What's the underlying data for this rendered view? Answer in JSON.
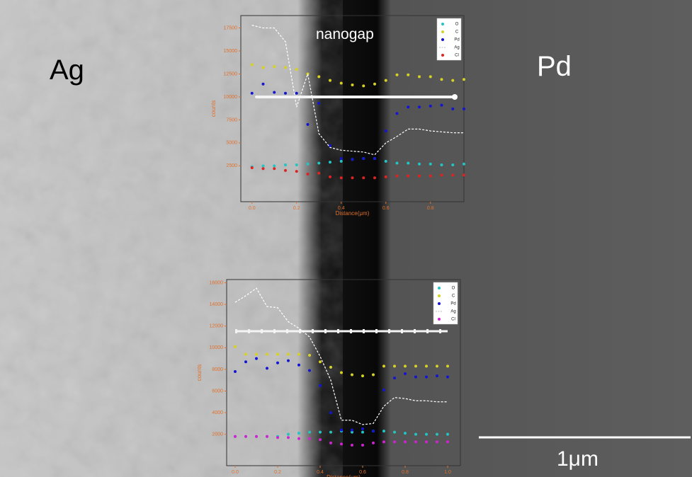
{
  "annotations": {
    "left_label": "Ag",
    "right_label": "Pd",
    "gap_label": "nanogap",
    "scale_label": "1μm"
  },
  "chart_data": [
    {
      "type": "scatter",
      "xlabel": "Distance(μm)",
      "ylabel": "counts",
      "legend": "upper right",
      "grid": false,
      "xlim": [
        -0.05,
        0.95
      ],
      "ylim": [
        -1400,
        18850
      ],
      "xticks": [
        {
          "value": 0,
          "label": "0.0"
        },
        0.2,
        0.4,
        0.6,
        0.8
      ],
      "yticks": [
        2500,
        5000,
        7500,
        10000,
        12500,
        15000,
        17500
      ],
      "x": [
        0,
        0.05,
        0.1,
        0.15,
        0.2,
        0.25,
        0.3,
        0.35,
        0.4,
        0.45,
        0.5,
        0.55,
        0.6,
        0.65,
        0.7,
        0.75,
        0.8,
        0.85,
        0.9,
        0.95
      ],
      "series": [
        {
          "name": "O",
          "color": "#22c4c4",
          "values": [
            2400,
            2500,
            2500,
            2600,
            2600,
            2700,
            2800,
            2900,
            3000,
            3200,
            3300,
            3300,
            3000,
            2800,
            2800,
            2700,
            2700,
            2600,
            2600,
            2700
          ]
        },
        {
          "name": "C",
          "color": "#d6d222",
          "values": [
            13500,
            13200,
            13300,
            13200,
            13000,
            12500,
            12200,
            11800,
            11500,
            11300,
            11200,
            11400,
            11800,
            12400,
            12400,
            12200,
            12200,
            11900,
            11800,
            11900
          ]
        },
        {
          "name": "Pd",
          "color": "#1414d4",
          "values": [
            10400,
            11400,
            10500,
            10400,
            10400,
            7000,
            9300,
            4700,
            3300,
            3200,
            3300,
            3300,
            6300,
            8200,
            8900,
            8900,
            9000,
            9100,
            8700,
            8700
          ]
        },
        {
          "name": "Ag",
          "color": "#ffffff",
          "type": "line",
          "values": [
            17800,
            17500,
            17500,
            16000,
            8900,
            12500,
            6000,
            4500,
            4200,
            4100,
            4000,
            3700,
            5000,
            5700,
            6500,
            6500,
            6300,
            6200,
            6100,
            6100
          ]
        },
        {
          "name": "Cl",
          "color": "#e02222",
          "values": [
            2300,
            2200,
            2200,
            2000,
            1900,
            1600,
            1700,
            1300,
            1200,
            1200,
            1200,
            1200,
            1300,
            1400,
            1400,
            1400,
            1400,
            1500,
            1500,
            1500
          ]
        }
      ]
    },
    {
      "type": "scatter",
      "xlabel": "Distance(μm)",
      "ylabel": "counts",
      "legend": "upper right",
      "grid": false,
      "xlim": [
        -0.04,
        1.06
      ],
      "ylim": [
        -900,
        16300
      ],
      "xticks": [
        {
          "value": 0,
          "label": "0.0"
        },
        0.2,
        0.4,
        0.6,
        0.8,
        {
          "value": 1,
          "label": "1.0"
        }
      ],
      "yticks": [
        2000,
        4000,
        6000,
        8000,
        10000,
        12000,
        14000,
        16000
      ],
      "x": [
        0,
        0.05,
        0.1,
        0.15,
        0.2,
        0.25,
        0.3,
        0.35,
        0.4,
        0.45,
        0.5,
        0.55,
        0.6,
        0.65,
        0.7,
        0.75,
        0.8,
        0.85,
        0.9,
        0.95,
        1
      ],
      "series": [
        {
          "name": "O",
          "color": "#22c4c4",
          "values": [
            1800,
            1800,
            1800,
            1800,
            1800,
            2000,
            2100,
            2200,
            2200,
            2200,
            2300,
            2200,
            2200,
            2300,
            2300,
            2200,
            2100,
            2000,
            2000,
            2000,
            2000
          ]
        },
        {
          "name": "C",
          "color": "#d6d222",
          "values": [
            10100,
            9400,
            9400,
            9400,
            9400,
            9400,
            9400,
            9300,
            8700,
            8200,
            7700,
            7500,
            7400,
            7500,
            8300,
            8300,
            8300,
            8300,
            8300,
            8300,
            8300
          ]
        },
        {
          "name": "Pd",
          "color": "#1414d4",
          "values": [
            7800,
            8700,
            9000,
            8100,
            8600,
            8800,
            8400,
            7900,
            6500,
            4000,
            2400,
            2400,
            2500,
            2300,
            6100,
            7200,
            7600,
            7300,
            7300,
            7400,
            7300
          ]
        },
        {
          "name": "Ag",
          "color": "#ffffff",
          "type": "line",
          "values": [
            14200,
            14800,
            15500,
            13800,
            13700,
            12400,
            11800,
            11000,
            9200,
            7000,
            3300,
            3300,
            2900,
            3000,
            4600,
            5400,
            5300,
            5100,
            5100,
            5000,
            5000
          ]
        },
        {
          "name": "Cl",
          "color": "#d022d0",
          "values": [
            1800,
            1800,
            1800,
            1800,
            1700,
            1700,
            1600,
            1600,
            1500,
            1200,
            1100,
            1000,
            1000,
            1200,
            1300,
            1300,
            1300,
            1300,
            1300,
            1300,
            1300
          ]
        }
      ]
    }
  ]
}
